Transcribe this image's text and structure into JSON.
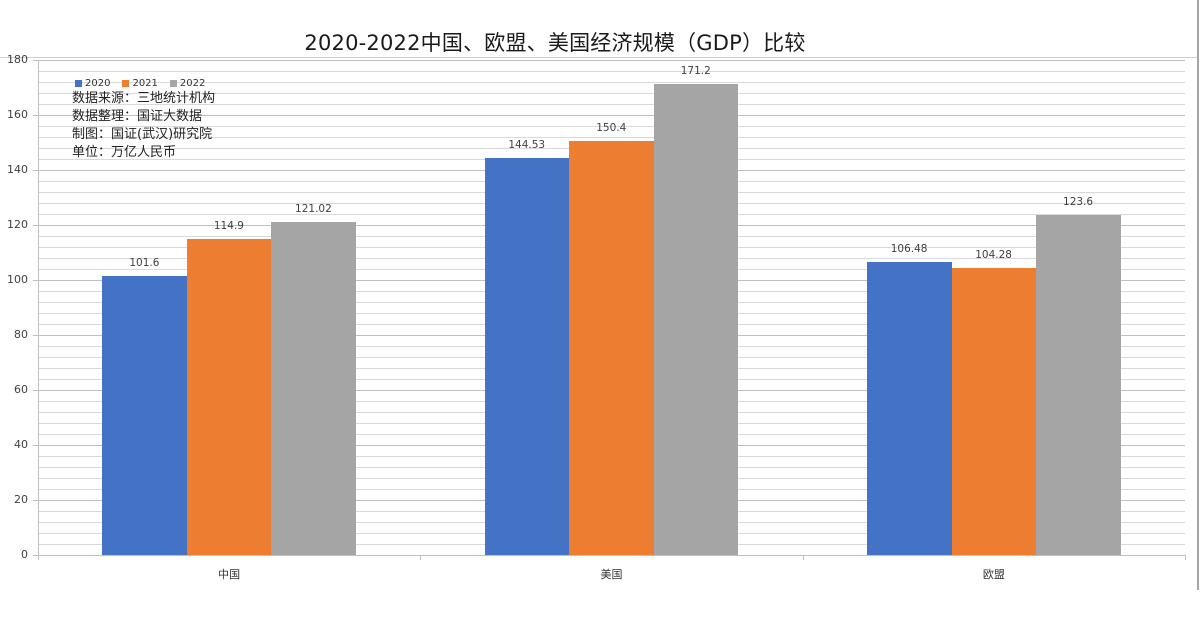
{
  "chart_data": {
    "type": "bar",
    "title": "2020-2022中国、欧盟、美国经济规模（GDP）比较",
    "categories": [
      "中国",
      "美国",
      "欧盟"
    ],
    "series": [
      {
        "name": "2020",
        "color": "#4472c4",
        "values": [
          101.6,
          144.53,
          106.48
        ]
      },
      {
        "name": "2021",
        "color": "#ed7d31",
        "values": [
          114.9,
          150.4,
          104.28
        ]
      },
      {
        "name": "2022",
        "color": "#a5a5a5",
        "values": [
          121.02,
          171.2,
          123.6
        ]
      }
    ],
    "data_labels": [
      [
        "101.6",
        "144.53",
        "106.48"
      ],
      [
        "114.9",
        "150.4",
        "104.28"
      ],
      [
        "121.02",
        "171.2",
        "123.6"
      ]
    ],
    "xlabel": "",
    "ylabel": "",
    "ylim": [
      0,
      180
    ],
    "yticks": [
      "0",
      "20",
      "40",
      "60",
      "80",
      "100",
      "120",
      "140",
      "160",
      "180"
    ],
    "grid": true,
    "legend_position": "top-left",
    "annotations": [
      "数据来源：三地统计机构",
      "数据整理：国证大数据",
      "制图：国证(武汉)研究院",
      "单位：万亿人民币"
    ]
  }
}
